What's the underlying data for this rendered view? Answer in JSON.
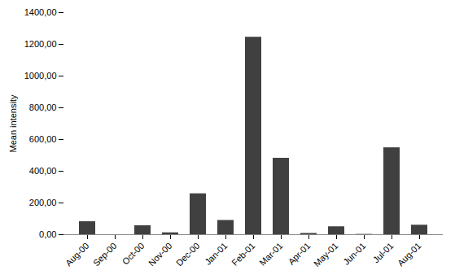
{
  "chart_data": {
    "type": "bar",
    "categories": [
      "Aug-00",
      "Sep-00",
      "Oct-00",
      "Nov-00",
      "Dec-00",
      "Jan-01",
      "Feb-01",
      "Mar-01",
      "Apr-01",
      "May-01",
      "Jun-01",
      "Jul-01",
      "Aug-01"
    ],
    "values": [
      82,
      0,
      57,
      12,
      258,
      90,
      1245,
      482,
      8,
      50,
      2,
      548,
      60
    ],
    "color": "#404040",
    "ylabel": "Mean intensity",
    "ylim": [
      0,
      1400
    ],
    "yticks": [
      {
        "value": 0,
        "label": "0,00"
      },
      {
        "value": 200,
        "label": "200,00"
      },
      {
        "value": 400,
        "label": "400,00"
      },
      {
        "value": 600,
        "label": "600,00"
      },
      {
        "value": 800,
        "label": "800,00"
      },
      {
        "value": 1000,
        "label": "1000,00"
      },
      {
        "value": 1200,
        "label": "1200,00"
      },
      {
        "value": 1400,
        "label": "1400,00"
      }
    ],
    "grid": false
  }
}
